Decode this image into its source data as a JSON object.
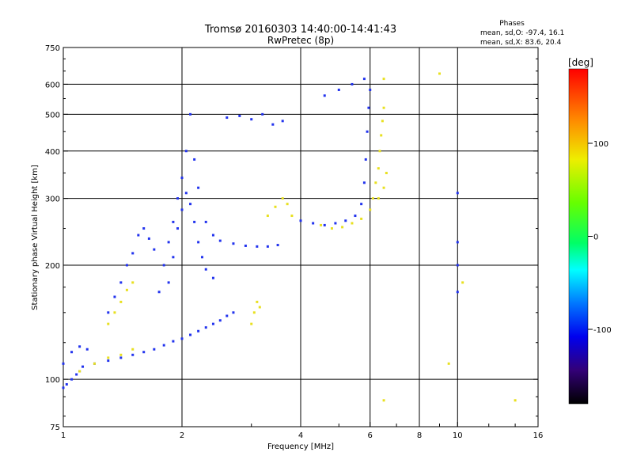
{
  "chart_data": {
    "type": "scatter",
    "title": "Tromsø 20160303 14:40:00-14:41:43",
    "subtitle": "RwPretec (8p)",
    "stats": {
      "heading": "Phases",
      "line1": "mean, sd,O: -97.4, 16.1",
      "line2": "mean, sd,X:  83.6, 20.4"
    },
    "xlabel": "Frequency [MHz]",
    "ylabel": "Stationary phase Virtual Height [km]",
    "x_scale": "log",
    "y_scale": "log",
    "xlim": [
      1,
      16
    ],
    "ylim": [
      75,
      750
    ],
    "x_ticks": [
      1,
      2,
      4,
      6,
      8,
      10,
      16
    ],
    "x_tick_labels": [
      "1",
      "2",
      "4",
      "6",
      "8",
      "10",
      "16"
    ],
    "x_grid": [
      2,
      4,
      6,
      8,
      10
    ],
    "y_ticks": [
      75,
      100,
      200,
      300,
      400,
      500,
      600,
      750
    ],
    "y_tick_labels": [
      "75",
      "100",
      "200",
      "300",
      "400",
      "500",
      "600",
      "750"
    ],
    "y_grid": [
      100,
      200,
      300,
      400,
      500,
      600
    ],
    "grid": true,
    "colorbar": {
      "label": "[deg]",
      "range": [
        -180,
        180
      ],
      "ticks": [
        100,
        0,
        -100
      ],
      "tick_labels": [
        "100",
        "0",
        "-100"
      ]
    },
    "point_colors": {
      "O": "#2233ee",
      "X": "#e8e020"
    },
    "series": [
      {
        "mode": "O",
        "points": [
          [
            1.0,
            95
          ],
          [
            1.02,
            97
          ],
          [
            1.05,
            100
          ],
          [
            1.08,
            103
          ],
          [
            1.1,
            105
          ],
          [
            1.12,
            108
          ],
          [
            1.2,
            110
          ],
          [
            1.3,
            112
          ],
          [
            1.4,
            114
          ],
          [
            1.5,
            116
          ],
          [
            1.6,
            118
          ],
          [
            1.7,
            120
          ],
          [
            1.8,
            123
          ],
          [
            1.9,
            126
          ],
          [
            2.0,
            128
          ],
          [
            2.1,
            131
          ],
          [
            2.2,
            134
          ],
          [
            2.3,
            137
          ],
          [
            2.4,
            140
          ],
          [
            2.5,
            143
          ],
          [
            2.6,
            147
          ],
          [
            2.7,
            150
          ],
          [
            1.0,
            110
          ],
          [
            1.05,
            118
          ],
          [
            1.1,
            122
          ],
          [
            1.15,
            120
          ],
          [
            1.3,
            150
          ],
          [
            1.35,
            165
          ],
          [
            1.4,
            180
          ],
          [
            1.45,
            200
          ],
          [
            1.5,
            215
          ],
          [
            1.55,
            240
          ],
          [
            1.6,
            250
          ],
          [
            1.65,
            235
          ],
          [
            1.7,
            220
          ],
          [
            1.75,
            170
          ],
          [
            1.8,
            200
          ],
          [
            1.85,
            230
          ],
          [
            1.9,
            260
          ],
          [
            1.95,
            300
          ],
          [
            2.0,
            340
          ],
          [
            2.05,
            400
          ],
          [
            2.1,
            500
          ],
          [
            2.15,
            380
          ],
          [
            2.2,
            320
          ],
          [
            2.3,
            260
          ],
          [
            2.4,
            240
          ],
          [
            1.85,
            180
          ],
          [
            1.9,
            210
          ],
          [
            1.95,
            250
          ],
          [
            2.0,
            280
          ],
          [
            2.05,
            310
          ],
          [
            2.1,
            290
          ],
          [
            2.15,
            260
          ],
          [
            2.2,
            230
          ],
          [
            2.25,
            210
          ],
          [
            2.3,
            195
          ],
          [
            2.4,
            185
          ],
          [
            2.5,
            232
          ],
          [
            2.7,
            228
          ],
          [
            2.9,
            225
          ],
          [
            3.1,
            224
          ],
          [
            3.3,
            224
          ],
          [
            3.5,
            226
          ],
          [
            2.6,
            490
          ],
          [
            2.8,
            495
          ],
          [
            3.0,
            485
          ],
          [
            3.2,
            500
          ],
          [
            3.4,
            470
          ],
          [
            3.6,
            480
          ],
          [
            4.0,
            262
          ],
          [
            4.3,
            258
          ],
          [
            4.6,
            255
          ],
          [
            4.9,
            258
          ],
          [
            5.2,
            262
          ],
          [
            5.5,
            270
          ],
          [
            5.7,
            290
          ],
          [
            5.8,
            330
          ],
          [
            5.85,
            380
          ],
          [
            5.9,
            450
          ],
          [
            5.95,
            520
          ],
          [
            6.0,
            580
          ],
          [
            4.6,
            560
          ],
          [
            5.0,
            580
          ],
          [
            5.4,
            600
          ],
          [
            5.8,
            620
          ],
          [
            10.0,
            310
          ],
          [
            10.0,
            230
          ],
          [
            10.0,
            200
          ],
          [
            10.0,
            170
          ]
        ]
      },
      {
        "mode": "X",
        "points": [
          [
            1.1,
            105
          ],
          [
            1.2,
            110
          ],
          [
            1.3,
            114
          ],
          [
            1.4,
            116
          ],
          [
            1.5,
            120
          ],
          [
            1.3,
            140
          ],
          [
            1.35,
            150
          ],
          [
            1.4,
            160
          ],
          [
            1.45,
            172
          ],
          [
            1.5,
            180
          ],
          [
            3.0,
            140
          ],
          [
            3.05,
            150
          ],
          [
            3.1,
            160
          ],
          [
            3.15,
            155
          ],
          [
            3.3,
            270
          ],
          [
            3.45,
            285
          ],
          [
            3.6,
            300
          ],
          [
            3.7,
            290
          ],
          [
            3.8,
            270
          ],
          [
            4.5,
            255
          ],
          [
            4.8,
            250
          ],
          [
            5.1,
            252
          ],
          [
            5.4,
            258
          ],
          [
            5.7,
            265
          ],
          [
            6.0,
            280
          ],
          [
            6.1,
            300
          ],
          [
            6.2,
            330
          ],
          [
            6.3,
            360
          ],
          [
            6.35,
            400
          ],
          [
            6.4,
            440
          ],
          [
            6.45,
            480
          ],
          [
            6.5,
            520
          ],
          [
            6.3,
            300
          ],
          [
            6.5,
            320
          ],
          [
            6.6,
            350
          ],
          [
            6.5,
            620
          ],
          [
            9.0,
            640
          ],
          [
            10.3,
            180
          ],
          [
            9.5,
            110
          ],
          [
            6.5,
            88
          ],
          [
            14.0,
            88
          ]
        ]
      }
    ]
  }
}
